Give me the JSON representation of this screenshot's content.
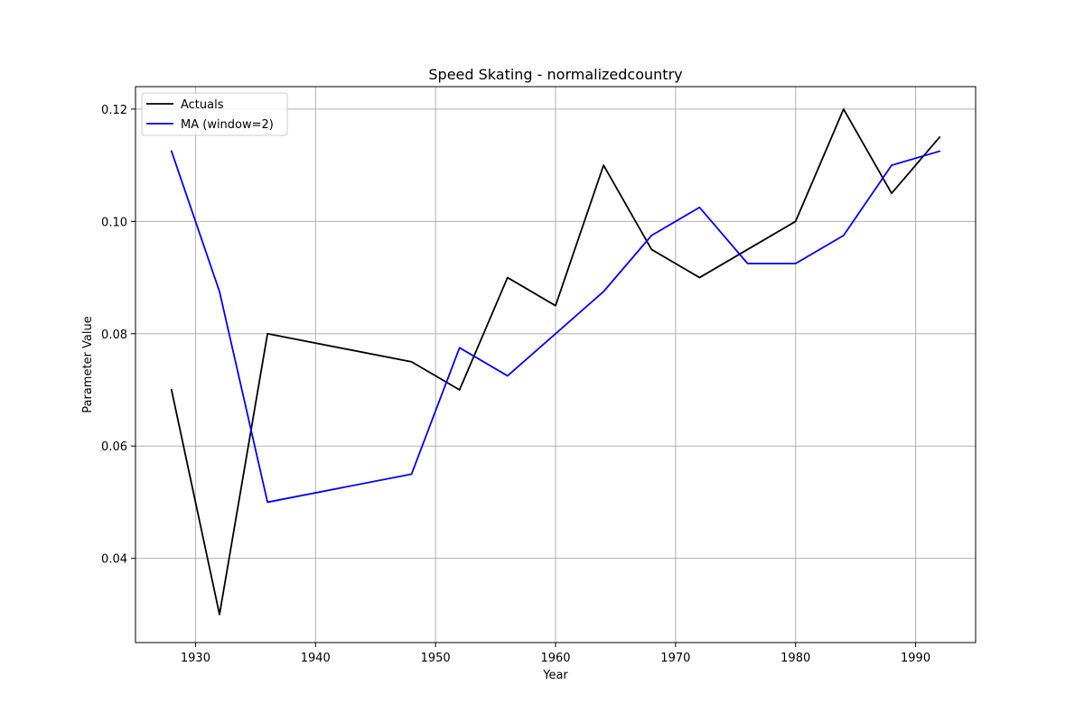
{
  "chart_data": {
    "type": "line",
    "title": "Speed Skating - normalizedcountry",
    "xlabel": "Year",
    "ylabel": "Parameter Value",
    "xlim": [
      1925,
      1995
    ],
    "ylim": [
      0.025,
      0.124
    ],
    "x_ticks": [
      1930,
      1940,
      1950,
      1960,
      1970,
      1980,
      1990
    ],
    "y_ticks": [
      0.04,
      0.06,
      0.08,
      0.1,
      0.12
    ],
    "x_tick_labels": [
      "1930",
      "1940",
      "1950",
      "1960",
      "1970",
      "1980",
      "1990"
    ],
    "y_tick_labels": [
      "0.04",
      "0.06",
      "0.08",
      "0.10",
      "0.12"
    ],
    "grid": true,
    "legend_position": "top-left",
    "series": [
      {
        "name": "Actuals",
        "color": "#000000",
        "x": [
          1928,
          1932,
          1936,
          1948,
          1952,
          1956,
          1960,
          1964,
          1968,
          1972,
          1976,
          1980,
          1984,
          1988,
          1992
        ],
        "values": [
          0.07,
          0.03,
          0.08,
          0.075,
          0.07,
          0.09,
          0.085,
          0.11,
          0.095,
          0.09,
          0.095,
          0.1,
          0.12,
          0.105,
          0.115
        ]
      },
      {
        "name": "MA (window=2)",
        "color": "#0000ff",
        "x": [
          1928,
          1932,
          1936,
          1948,
          1952,
          1956,
          1960,
          1964,
          1968,
          1972,
          1976,
          1980,
          1984,
          1988,
          1992
        ],
        "values": [
          0.1125,
          0.0875,
          0.05,
          0.055,
          0.0775,
          0.0725,
          0.08,
          0.0875,
          0.0975,
          0.1025,
          0.0925,
          0.0925,
          0.0975,
          0.11,
          0.1125
        ]
      }
    ]
  }
}
